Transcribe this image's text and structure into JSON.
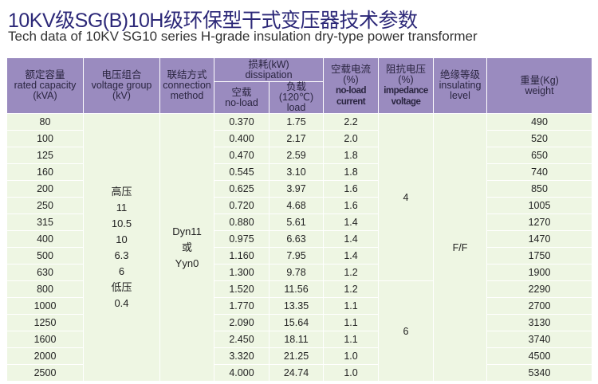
{
  "title": "10KV级SG(B)10H级环保型干式变压器技术参数",
  "subtitle": "Tech data of 10KV SG10 series H-grade insulation dry-type power transformer",
  "header": {
    "capacity": [
      "额定容量",
      "rated capacity",
      "(kVA)"
    ],
    "voltage": [
      "电压组合",
      "voltage group",
      "(kV)"
    ],
    "connection": [
      "联结方式",
      "connection",
      "method"
    ],
    "dissipation": [
      "损耗(kW)",
      "dissipation"
    ],
    "noload": [
      "空载",
      "no-load"
    ],
    "load": [
      "负载(120℃)",
      "load"
    ],
    "current": [
      "空载电流",
      "(%)",
      "no-load",
      "current"
    ],
    "impedance": [
      "阻抗电压",
      "(%)",
      "impedance",
      "voltage"
    ],
    "insulating": [
      "绝缘等级",
      "insulating",
      "level"
    ],
    "weight": [
      "重量(Kg)",
      "weight"
    ]
  },
  "rows": [
    [
      "80",
      "0.370",
      "1.75",
      "2.2",
      "490"
    ],
    [
      "100",
      "0.400",
      "2.17",
      "2.0",
      "520"
    ],
    [
      "125",
      "0.470",
      "2.59",
      "1.8",
      "650"
    ],
    [
      "160",
      "0.545",
      "3.10",
      "1.8",
      "740"
    ],
    [
      "200",
      "0.625",
      "3.97",
      "1.6",
      "850"
    ],
    [
      "250",
      "0.720",
      "4.68",
      "1.6",
      "1005"
    ],
    [
      "315",
      "0.880",
      "5.61",
      "1.4",
      "1270"
    ],
    [
      "400",
      "0.975",
      "6.63",
      "1.4",
      "1470"
    ],
    [
      "500",
      "1.160",
      "7.95",
      "1.4",
      "1750"
    ],
    [
      "630",
      "1.300",
      "9.78",
      "1.2",
      "1900"
    ],
    [
      "800",
      "1.520",
      "11.56",
      "1.2",
      "2290"
    ],
    [
      "1000",
      "1.770",
      "13.35",
      "1.1",
      "2700"
    ],
    [
      "1250",
      "2.090",
      "15.64",
      "1.1",
      "3130"
    ],
    [
      "1600",
      "2.450",
      "18.11",
      "1.1",
      "3740"
    ],
    [
      "2000",
      "3.320",
      "21.25",
      "1.0",
      "4500"
    ],
    [
      "2500",
      "4.000",
      "24.74",
      "1.0",
      "5340"
    ]
  ],
  "voltage_group": [
    "高压",
    "11",
    "10.5",
    "10",
    "6.3",
    "6",
    "低压",
    "0.4"
  ],
  "connection_values": [
    "Dyn11",
    "或",
    "Yyn0"
  ],
  "impedance_values": [
    "4",
    "6"
  ],
  "insulating_value": "F/F"
}
